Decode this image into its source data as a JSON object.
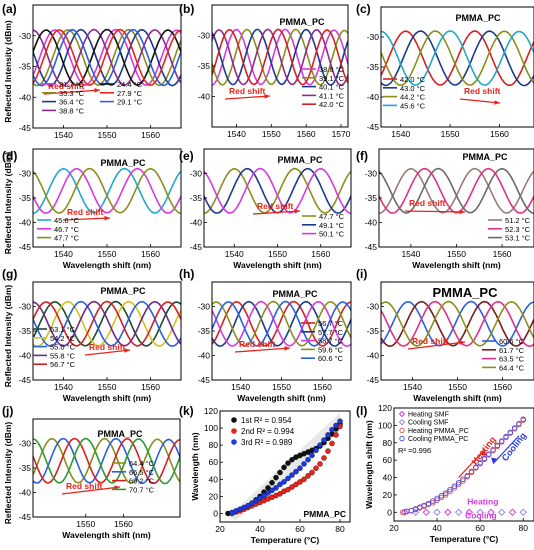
{
  "figure": {
    "panels_label_note": "",
    "common": {
      "xlabel": "Wavelength shift (nm)",
      "ylabel": "Reflected Intensity (dBm)",
      "red_shift_label": "Red shift",
      "sample_label": "PMMA_PC"
    }
  },
  "chart_data": [
    {
      "id": "a",
      "type": "line",
      "xlim": [
        1533,
        1567
      ],
      "ylim": [
        -45,
        -25
      ],
      "xticks": [
        1540,
        1550,
        1560
      ],
      "yticks": [
        -45,
        -40,
        -35,
        -30
      ],
      "title": "",
      "xlabel": "",
      "ylabel": "Reflected Intensity (dBm)",
      "show_sample_label": false,
      "show_red_shift": true,
      "legend": {
        "columns": 2
      },
      "series": [
        {
          "name": "31.7 °C",
          "color": "#d63adf",
          "center": 1538.0
        },
        {
          "name": "35.3 °C",
          "color": "#8a8f1c",
          "center": 1541.0
        },
        {
          "name": "36.4 °C",
          "color": "#1a3a8c",
          "center": 1544.0
        },
        {
          "name": "38.8 °C",
          "color": "#8e2a8e",
          "center": 1547.0
        },
        {
          "name": "24.4 °C",
          "color": "#111111",
          "center": 1550.0
        },
        {
          "name": "27.9 °C",
          "color": "#e8241b",
          "center": 1553.0
        },
        {
          "name": "29.1 °C",
          "color": "#2a5fe0",
          "center": 1556.0
        }
      ]
    },
    {
      "id": "b",
      "type": "line",
      "xlim": [
        1533,
        1572
      ],
      "ylim": [
        -45,
        -25
      ],
      "xticks": [
        1540,
        1550,
        1560,
        1570
      ],
      "yticks": [
        -40,
        -35,
        -30
      ],
      "title": "",
      "xlabel": "",
      "ylabel": "",
      "show_sample_label": true,
      "show_red_shift": true,
      "legend": {
        "columns": 1
      },
      "series": [
        {
          "name": "38.8 °C",
          "color": "#d63adf",
          "center": 1540.0
        },
        {
          "name": "39.1 °C",
          "color": "#8a8f1c",
          "center": 1543.0
        },
        {
          "name": "40.1 °C",
          "color": "#1a3a8c",
          "center": 1546.0
        },
        {
          "name": "41.1 °C",
          "color": "#8e2a8e",
          "center": 1549.0
        },
        {
          "name": "42.0 °C",
          "color": "#d62020",
          "center": 1552.0
        }
      ]
    },
    {
      "id": "c",
      "type": "line",
      "xlim": [
        1536,
        1567
      ],
      "ylim": [
        -45,
        -25
      ],
      "xticks": [
        1540,
        1550,
        1560
      ],
      "yticks": [
        -45,
        -40,
        -35,
        -30
      ],
      "title": "",
      "xlabel": "",
      "ylabel": "",
      "show_sample_label": true,
      "show_red_shift": true,
      "legend": {
        "columns": 1
      },
      "series": [
        {
          "name": "42.0 °C",
          "color": "#d62020",
          "center": 1541.0
        },
        {
          "name": "43.0 °C",
          "color": "#1a3a8c",
          "center": 1544.0
        },
        {
          "name": "44.2 °C",
          "color": "#8a8f1c",
          "center": 1547.0
        },
        {
          "name": "45.6 °C",
          "color": "#22a8c8",
          "center": 1550.0
        }
      ]
    },
    {
      "id": "d",
      "type": "line",
      "xlim": [
        1533,
        1567
      ],
      "ylim": [
        -45,
        -25
      ],
      "xticks": [
        1540,
        1550,
        1560
      ],
      "yticks": [
        -45,
        -40,
        -35,
        -30
      ],
      "title": "",
      "xlabel": "Wavelength shift (nm)",
      "ylabel": "Reflected Intensity (dBm)",
      "show_sample_label": true,
      "show_red_shift": true,
      "legend": {
        "columns": 1
      },
      "series": [
        {
          "name": "45.6 °C",
          "color": "#22a8c8",
          "center": 1540.0
        },
        {
          "name": "46.7 °C",
          "color": "#d63adf",
          "center": 1543.0
        },
        {
          "name": "47.7 °C",
          "color": "#8a8f1c",
          "center": 1546.0
        }
      ]
    },
    {
      "id": "e",
      "type": "line",
      "xlim": [
        1533,
        1567
      ],
      "ylim": [
        -45,
        -25
      ],
      "xticks": [
        1540,
        1550,
        1560
      ],
      "yticks": [
        -45,
        -40,
        -35,
        -30
      ],
      "title": "",
      "xlabel": "Wavelength shift (nm)",
      "ylabel": "",
      "show_sample_label": true,
      "show_red_shift": true,
      "legend": {
        "columns": 1
      },
      "series": [
        {
          "name": "47.7 °C",
          "color": "#8a8f1c",
          "center": 1540.0
        },
        {
          "name": "49.1 °C",
          "color": "#1a3a8c",
          "center": 1543.0
        },
        {
          "name": "50.1 °C",
          "color": "#d63adf",
          "center": 1546.0
        }
      ]
    },
    {
      "id": "f",
      "type": "line",
      "xlim": [
        1533,
        1567
      ],
      "ylim": [
        -45,
        -25
      ],
      "xticks": [
        1540,
        1550,
        1560
      ],
      "yticks": [
        -45,
        -40,
        -35,
        -30
      ],
      "title": "",
      "xlabel": "Wavelength shift (nm)",
      "ylabel": "",
      "show_sample_label": true,
      "show_red_shift": true,
      "legend": {
        "columns": 1
      },
      "series": [
        {
          "name": "51.2 °C",
          "color": "#9a7a78",
          "center": 1540.0
        },
        {
          "name": "52.3 °C",
          "color": "#e0308a",
          "center": 1543.0
        },
        {
          "name": "53.1 °C",
          "color": "#6a6a6a",
          "center": 1546.0
        }
      ]
    },
    {
      "id": "g",
      "type": "line",
      "xlim": [
        1533,
        1567
      ],
      "ylim": [
        -45,
        -25
      ],
      "xticks": [
        1540,
        1550,
        1560
      ],
      "yticks": [
        -45,
        -40,
        -35,
        -30
      ],
      "title": "",
      "xlabel": "Wavelength shift (nm)",
      "ylabel": "Reflected Intensity (dBm)",
      "show_sample_label": true,
      "show_red_shift": true,
      "legend": {
        "columns": 1
      },
      "series": [
        {
          "name": "53.1 °C",
          "color": "#1a4a2a",
          "center": 1538.0
        },
        {
          "name": "54.2 °C",
          "color": "#d4c21a",
          "center": 1541.0
        },
        {
          "name": "55.0 °C",
          "color": "#2a5fe0",
          "center": 1544.0
        },
        {
          "name": "55.8 °C",
          "color": "#6a2a8a",
          "center": 1547.0
        },
        {
          "name": "56.7 °C",
          "color": "#d62020",
          "center": 1550.0
        }
      ]
    },
    {
      "id": "h",
      "type": "line",
      "xlim": [
        1533,
        1567
      ],
      "ylim": [
        -45,
        -25
      ],
      "xticks": [
        1540,
        1550,
        1560
      ],
      "yticks": [
        -45,
        -40,
        -35,
        -30
      ],
      "title": "",
      "xlabel": "Wavelength shift (nm)",
      "ylabel": "",
      "show_sample_label": true,
      "show_red_shift": true,
      "legend": {
        "columns": 1
      },
      "series": [
        {
          "name": "56.7 °C",
          "color": "#d62020",
          "center": 1539.0
        },
        {
          "name": "57.7 °C",
          "color": "#1a3a8c",
          "center": 1542.0
        },
        {
          "name": "58.7 °C",
          "color": "#d63adf",
          "center": 1545.0
        },
        {
          "name": "59.6 °C",
          "color": "#8a8f1c",
          "center": 1548.0
        },
        {
          "name": "60.6 °C",
          "color": "#2a5fe0",
          "center": 1551.0
        }
      ]
    },
    {
      "id": "i",
      "type": "line",
      "xlim": [
        1533,
        1567
      ],
      "ylim": [
        -45,
        -25
      ],
      "xticks": [
        1540,
        1550,
        1560
      ],
      "yticks": [
        -45,
        -40,
        -35,
        -30
      ],
      "title": "",
      "xlabel": "Wavelength shift (nm)",
      "ylabel": "",
      "show_sample_label": true,
      "sample_label_large": true,
      "show_red_shift": true,
      "legend": {
        "columns": 1
      },
      "series": [
        {
          "name": "60.6 °C",
          "color": "#2a5fe0",
          "center": 1539.0
        },
        {
          "name": "61.7 °C",
          "color": "#7a1a1a",
          "center": 1542.0
        },
        {
          "name": "63.5 °C",
          "color": "#e0308a",
          "center": 1545.0
        },
        {
          "name": "64.4 °C",
          "color": "#8a8f1c",
          "center": 1548.0
        }
      ]
    },
    {
      "id": "j",
      "type": "line",
      "xlim": [
        1536,
        1575
      ],
      "ylim": [
        -45,
        -25
      ],
      "xticks": [
        1550,
        1560
      ],
      "yticks": [
        -45,
        -40,
        -35,
        -30
      ],
      "title": "",
      "xlabel": "Wavelength shift (nm)",
      "ylabel": "Reflected Intensity (dBm)",
      "show_sample_label": true,
      "show_red_shift": true,
      "legend": {
        "columns": 1
      },
      "series": [
        {
          "name": "64.4 °C",
          "color": "#8a8f1c",
          "center": 1541.0
        },
        {
          "name": "66.5 °C",
          "color": "#2a5fe0",
          "center": 1544.0
        },
        {
          "name": "69.2 °C",
          "color": "#d62020",
          "center": 1547.0
        },
        {
          "name": "70.7 °C",
          "color": "#2e9a2e",
          "center": 1550.0
        }
      ]
    },
    {
      "id": "k",
      "type": "scatter",
      "xlim": [
        20,
        85
      ],
      "ylim": [
        -10,
        120
      ],
      "xticks": [
        20,
        40,
        60,
        80
      ],
      "yticks": [
        0,
        20,
        40,
        60,
        80,
        100,
        120
      ],
      "title": "",
      "xlabel": "Temperature (°C)",
      "ylabel": "Wavelength (nm)",
      "corner_label": "PMMA_PC",
      "series": [
        {
          "name": "1st R² = 0.954",
          "color": "#111111",
          "x": [
            24,
            26,
            28,
            30,
            32,
            34,
            36,
            38,
            40,
            42,
            44,
            46,
            48,
            50,
            52,
            54,
            56,
            58,
            60,
            62,
            64,
            66,
            68,
            70,
            72,
            74,
            76,
            78,
            80
          ],
          "y": [
            0,
            1,
            2,
            4,
            6,
            9,
            12,
            16,
            20,
            25,
            30,
            36,
            42,
            48,
            54,
            59,
            63,
            66,
            68,
            70,
            72,
            74,
            76,
            79,
            83,
            88,
            93,
            99,
            105
          ]
        },
        {
          "name": "2nd R² = 0.994",
          "color": "#e8241b",
          "x": [
            26,
            28,
            30,
            32,
            34,
            36,
            38,
            40,
            42,
            44,
            46,
            48,
            50,
            52,
            54,
            56,
            58,
            60,
            62,
            64,
            66,
            68,
            70,
            72,
            74,
            76,
            78,
            80
          ],
          "y": [
            0,
            2,
            3,
            5,
            7,
            9,
            11,
            13,
            15,
            17,
            19,
            21,
            23,
            26,
            28,
            31,
            34,
            37,
            40,
            44,
            48,
            53,
            58,
            65,
            73,
            82,
            92,
            102
          ]
        },
        {
          "name": "3rd R² = 0.989",
          "color": "#1a3ae0",
          "x": [
            26,
            28,
            30,
            32,
            34,
            36,
            38,
            40,
            42,
            44,
            46,
            48,
            50,
            52,
            54,
            56,
            58,
            60,
            62,
            64,
            66,
            68,
            70,
            72,
            74,
            76,
            78,
            80
          ],
          "y": [
            1,
            3,
            5,
            7,
            9,
            12,
            15,
            18,
            21,
            24,
            27,
            30,
            34,
            37,
            41,
            45,
            49,
            53,
            58,
            63,
            68,
            74,
            80,
            86,
            92,
            98,
            103,
            108
          ]
        }
      ]
    },
    {
      "id": "l",
      "type": "scatter",
      "xlim": [
        20,
        85
      ],
      "ylim": [
        -10,
        120
      ],
      "xticks": [
        20,
        40,
        60,
        80
      ],
      "yticks": [
        0,
        20,
        40,
        60,
        80,
        100,
        120
      ],
      "title": "",
      "xlabel": "Temperature (°C)",
      "ylabel": "Wavelength shift (nm)",
      "r2_label": "R² =0.996",
      "annotations": {
        "heating_up": "Heating",
        "cooling_up": "Cooling",
        "heating_low": "Heating",
        "cooling_low": "Cooling"
      },
      "series": [
        {
          "name": "Heating SMF",
          "color": "#d63adf",
          "marker": "diamond",
          "x": [
            25,
            35,
            45,
            55,
            65,
            75
          ],
          "y": [
            0,
            0,
            0,
            0,
            0,
            0
          ]
        },
        {
          "name": "Cooling SMF",
          "color": "#8a8ae0",
          "marker": "diamond",
          "x": [
            30,
            40,
            50,
            60,
            70,
            80
          ],
          "y": [
            0,
            0,
            0,
            0,
            0,
            0
          ]
        },
        {
          "name": "Heating PMMA_PC",
          "color": "#e05050",
          "marker": "circle",
          "x": [
            24,
            26,
            28,
            30,
            32,
            34,
            36,
            38,
            40,
            42,
            44,
            46,
            48,
            50,
            52,
            54,
            56,
            58,
            60,
            62,
            64,
            66,
            68,
            70,
            72,
            74,
            76,
            78,
            80
          ],
          "y": [
            0,
            1,
            2,
            3,
            5,
            7,
            9,
            11,
            14,
            17,
            20,
            24,
            28,
            32,
            36,
            41,
            46,
            51,
            56,
            61,
            66,
            71,
            76,
            81,
            86,
            91,
            96,
            101,
            106
          ]
        },
        {
          "name": "Cooling PMMA_PC",
          "color": "#4a4ae0",
          "marker": "circle",
          "x": [
            26,
            28,
            30,
            32,
            34,
            36,
            38,
            40,
            42,
            44,
            46,
            48,
            50,
            52,
            54,
            56,
            58,
            60,
            62,
            64,
            66,
            68,
            70,
            72,
            74,
            76,
            78,
            80
          ],
          "y": [
            1,
            2,
            4,
            6,
            8,
            10,
            13,
            16,
            19,
            22,
            26,
            30,
            34,
            38,
            42,
            47,
            52,
            57,
            62,
            67,
            72,
            77,
            82,
            87,
            92,
            97,
            102,
            107
          ]
        }
      ]
    }
  ]
}
